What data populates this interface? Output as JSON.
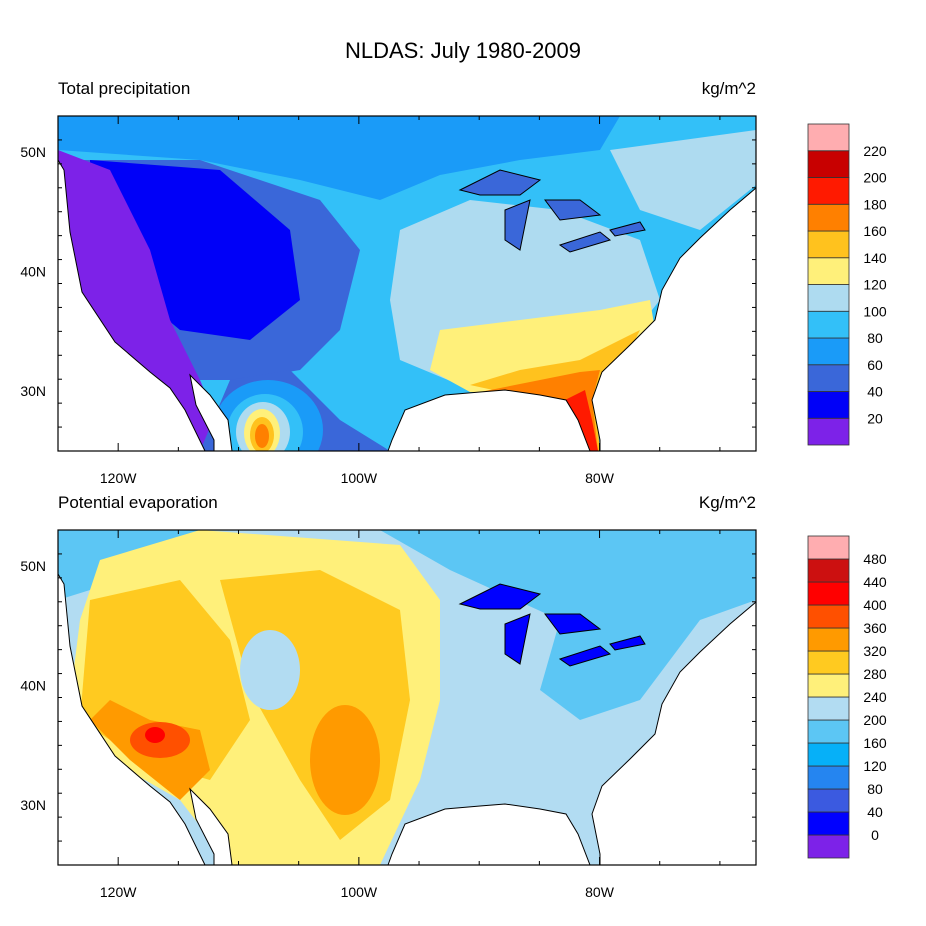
{
  "chart_data": {
    "type": "heatmap",
    "title": "NLDAS: July 1980-2009",
    "panels": [
      {
        "name": "precipitation",
        "left_title": "Total precipitation",
        "right_title": "kg/m^2",
        "lon_range": [
          -125,
          -67
        ],
        "lat_range": [
          25,
          53
        ],
        "x_ticks": [
          "120W",
          "100W",
          "80W"
        ],
        "y_ticks": [
          "50N",
          "40N",
          "30N"
        ],
        "levels": [
          "20",
          "40",
          "60",
          "80",
          "100",
          "120",
          "140",
          "160",
          "180",
          "200",
          "220"
        ],
        "colors": [
          "#7d22e8",
          "#0000f8",
          "#3a67d9",
          "#1a9bf8",
          "#33c0f8",
          "#aedbf0",
          "#fff07a",
          "#ffc21e",
          "#ff8000",
          "#ff1a00",
          "#c80000",
          "#ffadb0"
        ]
      },
      {
        "name": "potential_evaporation",
        "left_title": "Potential evaporation",
        "right_title": "Kg/m^2",
        "lon_range": [
          -125,
          -67
        ],
        "lat_range": [
          25,
          53
        ],
        "x_ticks": [
          "120W",
          "100W",
          "80W"
        ],
        "y_ticks": [
          "50N",
          "40N",
          "30N"
        ],
        "levels": [
          "0",
          "40",
          "80",
          "120",
          "160",
          "200",
          "240",
          "280",
          "320",
          "360",
          "400",
          "440",
          "480"
        ],
        "colors": [
          "#7d22e8",
          "#0000ff",
          "#3b5ae0",
          "#2585f0",
          "#06b0f8",
          "#5cc6f4",
          "#b2dcf2",
          "#fff07a",
          "#ffca20",
          "#ff9a00",
          "#ff5000",
          "#ff0000",
          "#cc1010",
          "#ffadb0"
        ]
      }
    ]
  }
}
